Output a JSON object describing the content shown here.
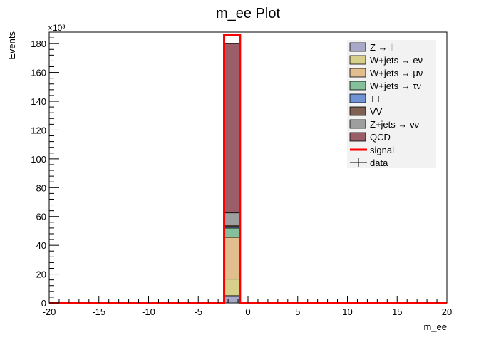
{
  "chart_data": {
    "type": "bar",
    "title": "m_ee Plot",
    "xlabel": "m_ee",
    "ylabel": "Events",
    "y_multiplier": "×10³",
    "xlim": [
      -20,
      20
    ],
    "ylim": [
      0,
      188
    ],
    "x_ticks": [
      -20,
      -15,
      -10,
      -5,
      0,
      5,
      10,
      15,
      20
    ],
    "y_ticks": [
      0,
      20,
      40,
      60,
      80,
      100,
      120,
      140,
      160,
      180
    ],
    "grid": false,
    "legend_position": "top-right",
    "bin": [
      -2.4,
      -0.8
    ],
    "stack": [
      {
        "name": "Z → ll",
        "value": 5,
        "color": "#a8a8c8"
      },
      {
        "name": "W+jets → eν",
        "value": 11.5,
        "color": "#d6d08a"
      },
      {
        "name": "W+jets → μν",
        "value": 29,
        "color": "#e2be8e"
      },
      {
        "name": "W+jets → τν",
        "value": 6.5,
        "color": "#84c09c"
      },
      {
        "name": "TT",
        "value": 1,
        "color": "#7093d6"
      },
      {
        "name": "VV",
        "value": 1,
        "color": "#7e6152"
      },
      {
        "name": "Z+jets → νν",
        "value": 8.5,
        "color": "#9e9e9e"
      },
      {
        "name": "QCD",
        "value": 117.5,
        "color": "#9b5e68"
      }
    ],
    "signal": {
      "name": "signal",
      "value": 186,
      "color": "#ff0000"
    },
    "data": {
      "name": "data"
    }
  }
}
